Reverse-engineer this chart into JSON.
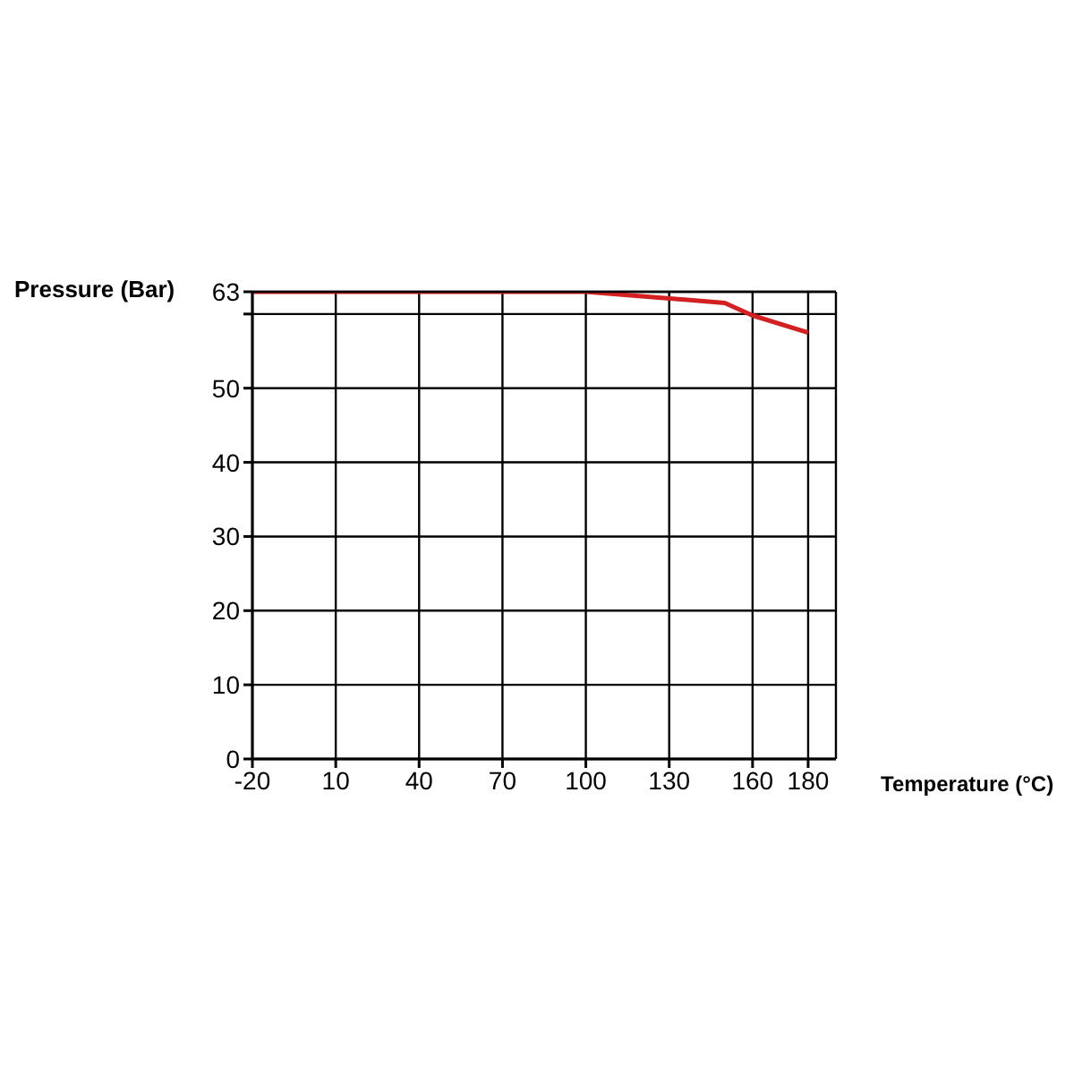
{
  "chart_data": {
    "type": "line",
    "xlabel": "Temperature (°C)",
    "ylabel": "Pressure (Bar)",
    "x": [
      -20,
      100,
      150,
      160,
      180
    ],
    "series": [
      {
        "color": "#d42020",
        "values": [
          63,
          63,
          61.5,
          59.8,
          57.5
        ]
      }
    ],
    "xlim": [
      -20,
      190
    ],
    "xticks": [
      -20,
      10,
      40,
      70,
      100,
      130,
      160,
      180
    ],
    "ylim": [
      0,
      63
    ],
    "yticks": [
      0,
      10,
      20,
      30,
      40,
      50,
      {
        "value": 60,
        "label": null
      },
      63
    ],
    "grid": true,
    "marker": "none",
    "line_style": "solid"
  }
}
